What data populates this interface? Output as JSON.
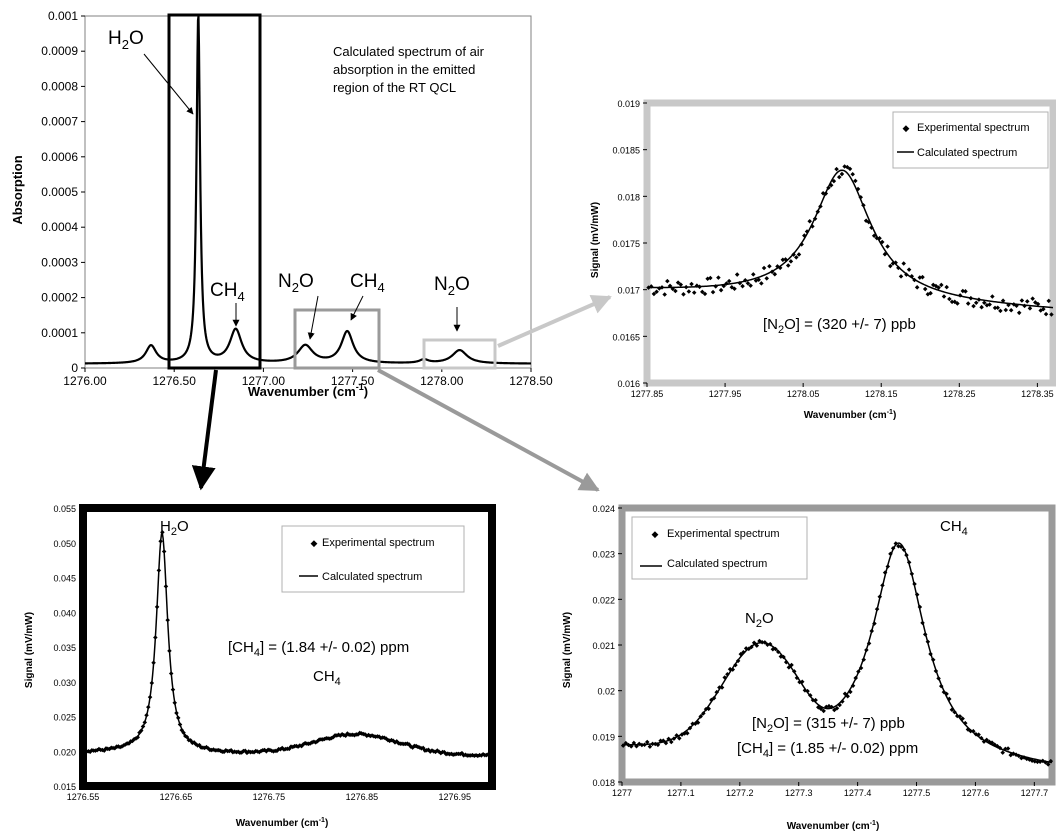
{
  "chart_data": [
    {
      "id": "main",
      "type": "line",
      "ylabel": "Absorption",
      "xlabel": "Wavenumber (cm-1)",
      "xlim": [
        1276.0,
        1278.5
      ],
      "ylim": [
        0,
        0.001
      ],
      "x_ticks": [
        "1276.00",
        "1276.50",
        "1277.00",
        "1277.50",
        "1278.00",
        "1278.50"
      ],
      "y_ticks": [
        "0",
        "0.0001",
        "0.0002",
        "0.0003",
        "0.0004",
        "0.0005",
        "0.0006",
        "0.0007",
        "0.0008",
        "0.0009",
        "0.001"
      ],
      "annotation": "Calculated spectrum of air absorption in the emitted region of the RT QCL",
      "peak_labels": [
        {
          "text": "H2O",
          "x": 1276.62,
          "y": 0.00096
        },
        {
          "text": "CH4",
          "x": 1276.82,
          "y": 0.0002
        },
        {
          "text": "N2O",
          "x": 1277.24,
          "y": 0.0002
        },
        {
          "text": "CH4",
          "x": 1277.45,
          "y": 0.0002
        },
        {
          "text": "N2O",
          "x": 1278.08,
          "y": 0.0002
        }
      ],
      "peaks": [
        {
          "x": 1276.37,
          "height": 5e-05,
          "width": 0.035
        },
        {
          "x": 1276.635,
          "height": 0.00099,
          "width": 0.012
        },
        {
          "x": 1276.845,
          "height": 9.5e-05,
          "width": 0.04
        },
        {
          "x": 1277.235,
          "height": 5e-05,
          "width": 0.05
        },
        {
          "x": 1277.47,
          "height": 9e-05,
          "width": 0.04
        },
        {
          "x": 1277.9,
          "height": 1e-05,
          "width": 0.03
        },
        {
          "x": 1278.1,
          "height": 3.8e-05,
          "width": 0.05
        }
      ],
      "baseline": 1.2e-05
    },
    {
      "id": "n2o_1278",
      "type": "line",
      "ylabel": "Signal (mV/mW)",
      "xlabel": "Wavenumber (cm-1)",
      "xlim": [
        1277.85,
        1278.37
      ],
      "ylim": [
        0.016,
        0.019
      ],
      "x_ticks": [
        "1277.85",
        "1277.95",
        "1278.05",
        "1278.15",
        "1278.25",
        "1278.35"
      ],
      "y_ticks": [
        "0.016",
        "0.0165",
        "0.017",
        "0.0175",
        "0.018",
        "0.0185",
        "0.019"
      ],
      "concentration": "[N2O] = (320 +/- 7) ppb",
      "legend": [
        "Experimental spectrum",
        "Calculated spectrum"
      ],
      "series": [
        {
          "name": "Calculated spectrum",
          "peak_x": 1278.1,
          "peak_y": 0.01828,
          "baseline_start": 0.01698,
          "baseline_end": 0.01677
        }
      ]
    },
    {
      "id": "h2o_ch4",
      "type": "line",
      "ylabel": "Signal (mV/mW)",
      "xlabel": "Wavenumber (cm-1)",
      "xlim": [
        1276.55,
        1276.99
      ],
      "ylim": [
        0.015,
        0.055
      ],
      "x_ticks": [
        "1276.55",
        "1276.65",
        "1276.75",
        "1276.85",
        "1276.95"
      ],
      "y_ticks": [
        "0.015",
        "0.020",
        "0.025",
        "0.030",
        "0.035",
        "0.040",
        "0.045",
        "0.050",
        "0.055"
      ],
      "concentration": "[CH4] = (1.84 +/- 0.02) ppm",
      "peak_labels": [
        {
          "text": "H2O",
          "x": 1276.638,
          "y": 0.0525
        },
        {
          "text": "CH4",
          "x": 1276.842,
          "y": 0.0255
        }
      ],
      "legend": [
        "Experimental spectrum",
        "Calculated spectrum"
      ],
      "series": [
        {
          "name": "Calculated spectrum",
          "peak1_x": 1276.635,
          "peak1_y": 0.0515,
          "peak2_x": 1276.845,
          "peak2_y": 0.0227,
          "baseline": 0.0198
        }
      ]
    },
    {
      "id": "n2o_ch4",
      "type": "line",
      "ylabel": "Signal (mV/mW)",
      "xlabel": "Wavenumber (cm-1)",
      "xlim": [
        1277.0,
        1277.73
      ],
      "ylim": [
        0.018,
        0.024
      ],
      "x_ticks": [
        "1277",
        "1277.1",
        "1277.2",
        "1277.3",
        "1277.4",
        "1277.5",
        "1277.6",
        "1277.7"
      ],
      "y_ticks": [
        "0.018",
        "0.019",
        "0.02",
        "0.021",
        "0.022",
        "0.023",
        "0.024"
      ],
      "concentration_lines": [
        "[N2O] = (315 +/- 7) ppb",
        "[CH4] = (1.85 +/- 0.02) ppm"
      ],
      "peak_labels": [
        {
          "text": "N2O",
          "x": 1277.24,
          "y": 0.0215
        },
        {
          "text": "CH4",
          "x": 1277.5,
          "y": 0.0234
        }
      ],
      "legend": [
        "Experimental spectrum",
        "Calculated spectrum"
      ],
      "series": [
        {
          "name": "Calculated spectrum",
          "peak1_x": 1277.235,
          "peak1_y": 0.02092,
          "valley_y": 0.01995,
          "peak2_x": 1277.47,
          "peak2_y": 0.02342,
          "baseline_start": 0.01875,
          "baseline_end": 0.01822
        }
      ]
    }
  ],
  "colors": {
    "black": "#000000",
    "frame_gray": "#9a9a9a",
    "frame_light": "#c8c8c8",
    "arrow_dark": "#000000",
    "arrow_gray": "#9a9a9a",
    "arrow_light": "#c8c8c8"
  }
}
